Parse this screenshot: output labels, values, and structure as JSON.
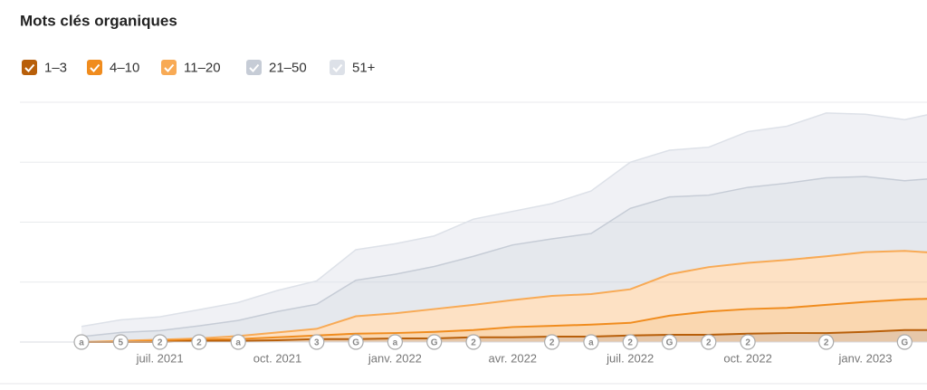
{
  "chart_data": {
    "type": "stacked_area",
    "title": "Mots clés organiques",
    "categories": [
      null,
      null,
      "juil. 2021",
      null,
      null,
      "oct. 2021",
      null,
      null,
      "janv. 2022",
      null,
      null,
      "avr. 2022",
      null,
      null,
      "juil. 2022",
      null,
      null,
      "oct. 2022",
      null,
      null,
      "janv. 2023",
      null,
      null
    ],
    "annotations": [
      "a",
      "5",
      "2",
      "2",
      "a",
      null,
      "3",
      "G",
      "a",
      "G",
      "2",
      null,
      "2",
      "a",
      "2",
      "G",
      "2",
      "2",
      null,
      "2",
      null,
      "G",
      null
    ],
    "series": [
      {
        "name": "1–3",
        "color": "#b85f0a",
        "values": [
          0,
          0,
          0,
          2,
          2,
          3,
          5,
          5,
          6,
          6,
          8,
          8,
          9,
          9,
          11,
          12,
          12,
          14,
          15,
          15,
          17,
          20,
          20
        ]
      },
      {
        "name": "4–10",
        "color": "#f08c1e",
        "values": [
          0,
          0,
          2,
          2,
          3,
          5,
          6,
          9,
          9,
          11,
          12,
          17,
          18,
          20,
          21,
          32,
          39,
          41,
          42,
          47,
          50,
          51,
          53
        ]
      },
      {
        "name": "11–20",
        "color": "#f8aa55",
        "values": [
          0,
          2,
          2,
          2,
          5,
          8,
          11,
          29,
          33,
          38,
          42,
          45,
          50,
          51,
          56,
          69,
          74,
          77,
          80,
          81,
          83,
          81,
          75
        ]
      },
      {
        "name": "21–50",
        "color": "#c6ccd6",
        "values": [
          9,
          14,
          15,
          21,
          26,
          35,
          41,
          60,
          65,
          71,
          81,
          92,
          95,
          101,
          135,
          129,
          120,
          126,
          128,
          131,
          126,
          117,
          126
        ]
      },
      {
        "name": "51+",
        "color": "#dde1e8",
        "values": [
          17,
          21,
          23,
          27,
          30,
          35,
          39,
          51,
          51,
          51,
          62,
          56,
          59,
          71,
          77,
          78,
          80,
          93,
          95,
          108,
          104,
          102,
          111
        ]
      }
    ],
    "ylim": [
      0,
      400
    ],
    "gridlines": [
      0,
      100,
      200,
      300,
      400
    ],
    "grid": true
  }
}
